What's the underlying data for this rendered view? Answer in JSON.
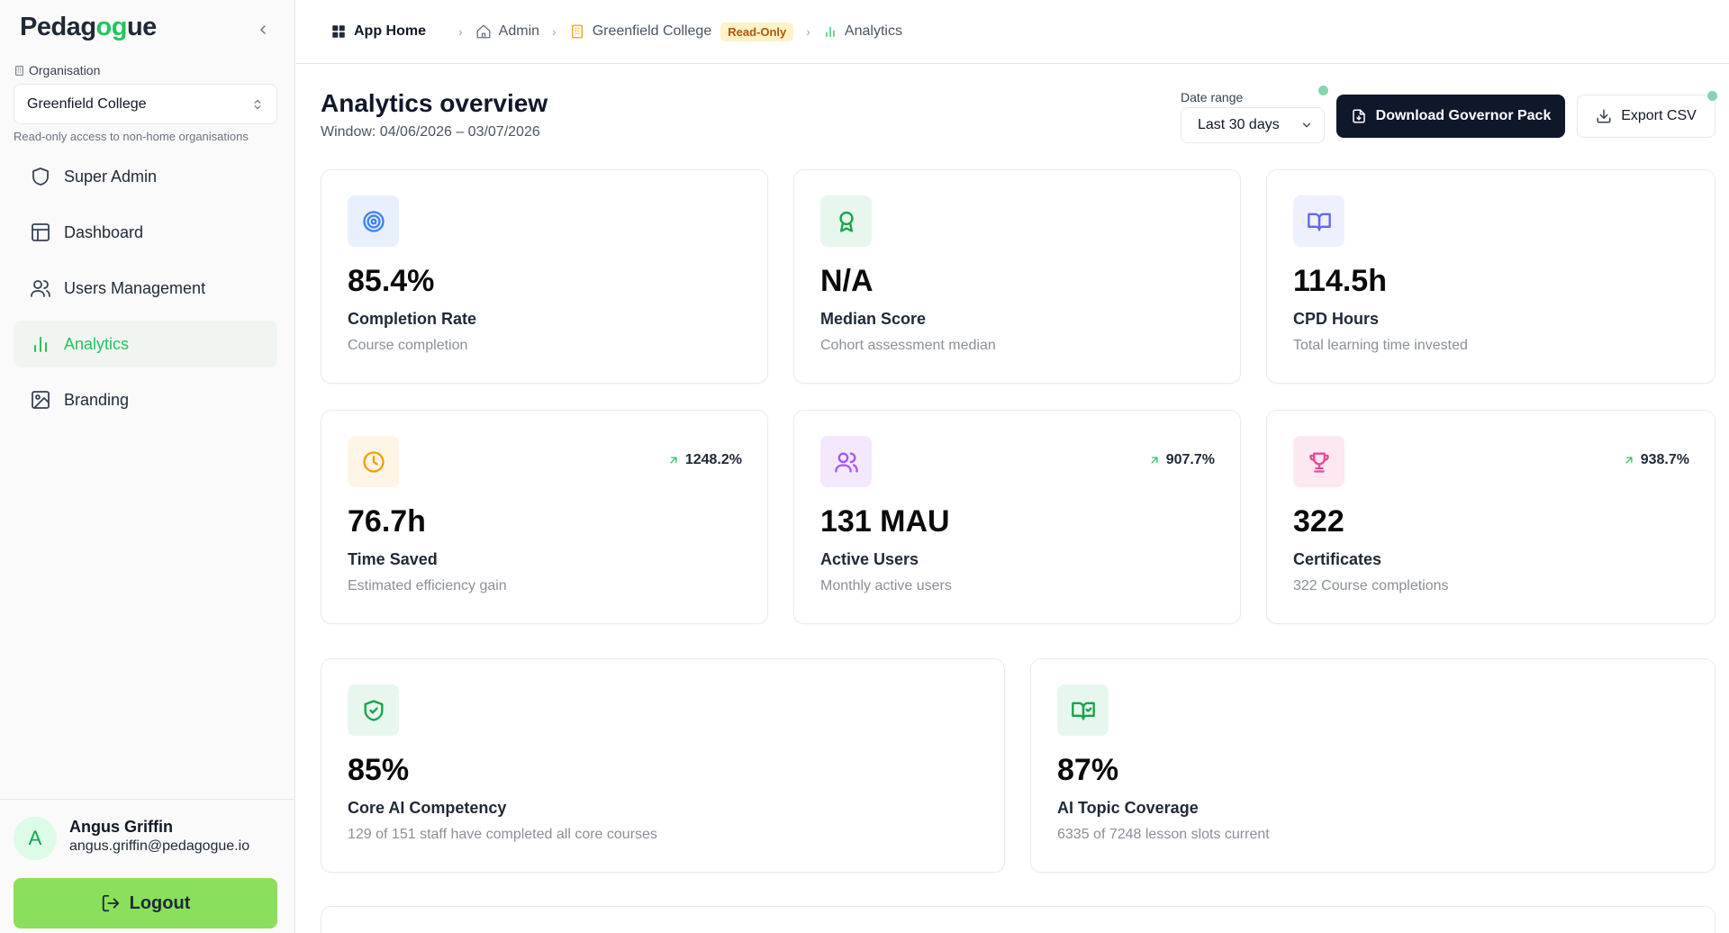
{
  "brand": {
    "name_prefix": "Pedag",
    "name_accent": "og",
    "name_suffix": "ue"
  },
  "sidebar": {
    "org_label": "Organisation",
    "org_value": "Greenfield College",
    "org_note": "Read-only access to non-home organisations",
    "items": [
      {
        "label": "Super Admin",
        "icon": "shield-icon"
      },
      {
        "label": "Dashboard",
        "icon": "layout-icon"
      },
      {
        "label": "Users Management",
        "icon": "users-icon"
      },
      {
        "label": "Analytics",
        "icon": "bar-chart-icon",
        "active": true
      },
      {
        "label": "Branding",
        "icon": "image-icon"
      }
    ],
    "user": {
      "initial": "A",
      "name": "Angus Griffin",
      "email": "angus.griffin@pedagogue.io"
    },
    "logout_label": "Logout"
  },
  "breadcrumb": {
    "home": "App Home",
    "admin": "Admin",
    "org": "Greenfield College",
    "badge": "Read-Only",
    "current": "Analytics"
  },
  "header": {
    "title": "Analytics overview",
    "window": "Window: 04/06/2026 – 03/07/2026",
    "date_range_label": "Date range",
    "date_range_value": "Last 30 days",
    "download_label": "Download Governor Pack",
    "export_label": "Export CSV"
  },
  "colors": {
    "accent": "#22c55e",
    "dark": "#0f172a",
    "logout": "#8ae05c"
  },
  "cards": [
    {
      "icon": "target-icon",
      "value": "85.4%",
      "title": "Completion Rate",
      "subtitle": "Course completion"
    },
    {
      "icon": "award-icon",
      "value": "N/A",
      "title": "Median Score",
      "subtitle": "Cohort assessment median"
    },
    {
      "icon": "book-icon",
      "value": "114.5h",
      "title": "CPD Hours",
      "subtitle": "Total learning time invested"
    },
    {
      "icon": "clock-icon",
      "value": "76.7h",
      "title": "Time Saved",
      "subtitle": "Estimated efficiency gain",
      "trend": "1248.2%"
    },
    {
      "icon": "users-icon",
      "value": "131 MAU",
      "title": "Active Users",
      "subtitle": "Monthly active users",
      "trend": "907.7%"
    },
    {
      "icon": "trophy-icon",
      "value": "322",
      "title": "Certificates",
      "subtitle": "322 Course completions",
      "trend": "938.7%"
    },
    {
      "icon": "shield-check-icon",
      "value": "85%",
      "title": "Core AI Competency",
      "subtitle": "129 of 151 staff have completed all core courses"
    },
    {
      "icon": "book-check-icon",
      "value": "87%",
      "title": "AI Topic Coverage",
      "subtitle": "6335 of 7248 lesson slots current"
    }
  ]
}
